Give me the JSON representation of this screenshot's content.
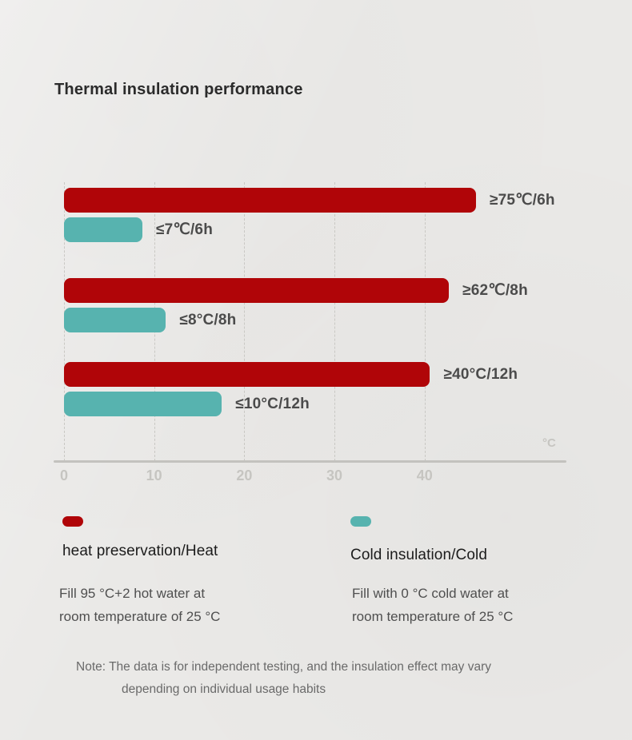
{
  "title": "Thermal insulation performance",
  "chart_data": {
    "type": "bar",
    "orientation": "horizontal",
    "title": "Thermal insulation performance",
    "axis": {
      "min": 0,
      "max": 56,
      "tick_values": [
        0,
        10,
        20,
        30,
        40
      ],
      "tick_labels": [
        "0",
        "10",
        "20",
        "30",
        "40"
      ],
      "unit_label": "°C",
      "grid": "dashed-vertical"
    },
    "legend_position": "bottom",
    "series": [
      {
        "name": "heat preservation/Heat",
        "color": "#b00508",
        "values": [
          45.7,
          42.7,
          40.6
        ],
        "bar_labels": [
          "≥75℃/6h",
          "≥62℃/8h",
          "≥40°C/12h"
        ]
      },
      {
        "name": "Cold insulation/Cold",
        "color": "#57b3af",
        "values": [
          8.7,
          11.3,
          17.5
        ],
        "bar_labels": [
          "≤7℃/6h",
          "≤8°C/8h",
          "≤10°C/12h"
        ]
      }
    ]
  },
  "legend": {
    "heat": {
      "label": "heat preservation/Heat",
      "color": "#b00508",
      "desc_line1": "Fill 95 °C+2 hot water at",
      "desc_line2": "room temperature of 25 °C"
    },
    "cold": {
      "label": "Cold insulation/Cold",
      "color": "#57b3af",
      "desc_line1": "Fill with 0 °C cold water at",
      "desc_line2": "room temperature of 25 °C"
    }
  },
  "note": {
    "line1": "Note: The data is for independent testing, and the insulation effect may vary",
    "line2": "depending on individual usage habits"
  }
}
